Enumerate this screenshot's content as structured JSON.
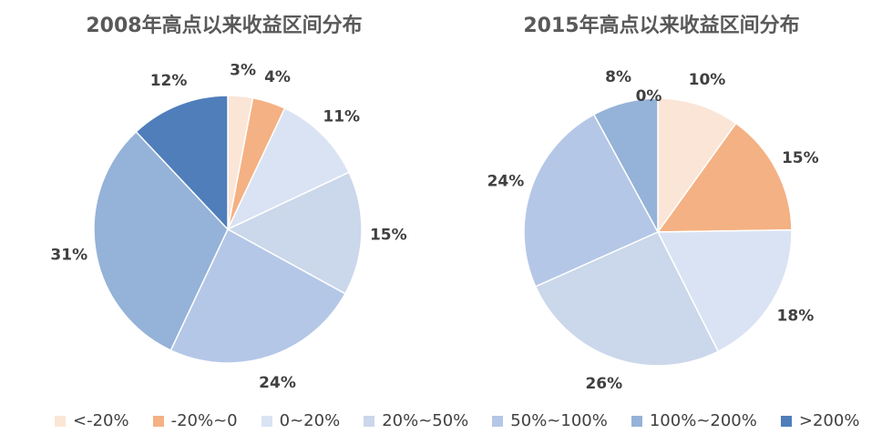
{
  "categories": [
    "<-20%",
    "-20%~0",
    "0~20%",
    "20%~50%",
    "50%~100%",
    "100%~200%",
    ">200%"
  ],
  "colors": [
    "#fbe5d6",
    "#f4b183",
    "#dae3f3",
    "#cbd7ea",
    "#b4c7e7",
    "#95b2d8",
    "#4f7ebb"
  ],
  "chart_data": [
    {
      "type": "pie",
      "title": "2008年高点以来收益区间分布",
      "categories": [
        "<-20%",
        "-20%~0",
        "0~20%",
        "20%~50%",
        "50%~100%",
        "100%~200%",
        ">200%"
      ],
      "values": [
        3,
        4,
        11,
        15,
        24,
        31,
        12
      ],
      "labels": [
        "3%",
        "4%",
        "11%",
        "15%",
        "24%",
        "31%",
        "12%"
      ],
      "legend_position": "bottom"
    },
    {
      "type": "pie",
      "title": "2015年高点以来收益区间分布",
      "categories": [
        "<-20%",
        "-20%~0",
        "0~20%",
        "20%~50%",
        "50%~100%",
        "100%~200%",
        ">200%"
      ],
      "values": [
        10,
        15,
        18,
        26,
        24,
        8,
        0
      ],
      "labels": [
        "10%",
        "15%",
        "18%",
        "26%",
        "24%",
        "8%",
        "0%"
      ],
      "legend_position": "bottom"
    }
  ]
}
